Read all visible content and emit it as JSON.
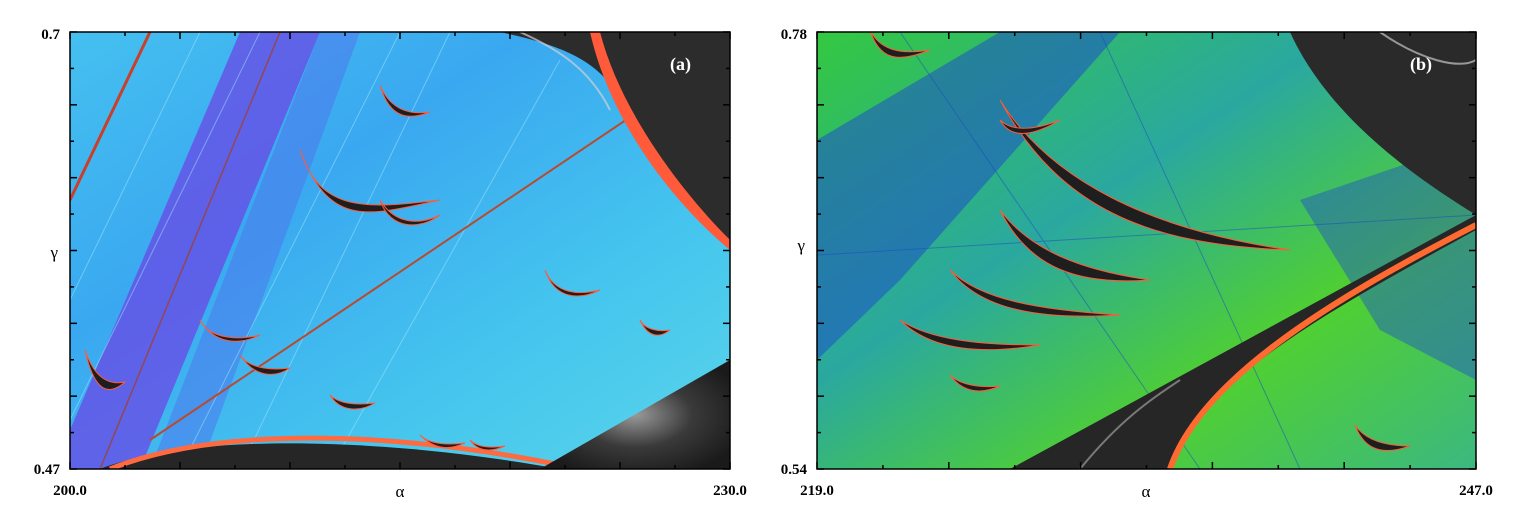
{
  "chart_data": [
    {
      "type": "heatmap",
      "panel_label": "(a)",
      "xlabel": "α",
      "ylabel": "γ",
      "xlim": [
        200.0,
        230.0
      ],
      "ylim": [
        0.47,
        0.7
      ],
      "x_tick_labels": [
        "200.0",
        "230.0"
      ],
      "y_tick_labels": [
        "0.7",
        "0.47"
      ],
      "colors": {
        "background": "#3cb4ee",
        "band": "#5a3ce0",
        "stable": "#2a2a2a",
        "edge": "#ff5a3a"
      }
    },
    {
      "type": "heatmap",
      "panel_label": "(b)",
      "xlabel": "α",
      "ylabel": "γ",
      "xlim": [
        219.0,
        247.0
      ],
      "ylim": [
        0.54,
        0.78
      ],
      "x_tick_labels": [
        "219.0",
        "247.0"
      ],
      "y_tick_labels": [
        "0.78",
        "0.54"
      ],
      "colors": {
        "background": "#3cd23c",
        "band": "#1e3cc8",
        "stable": "#2a2a2a",
        "edge": "#ff5a3a"
      }
    }
  ]
}
